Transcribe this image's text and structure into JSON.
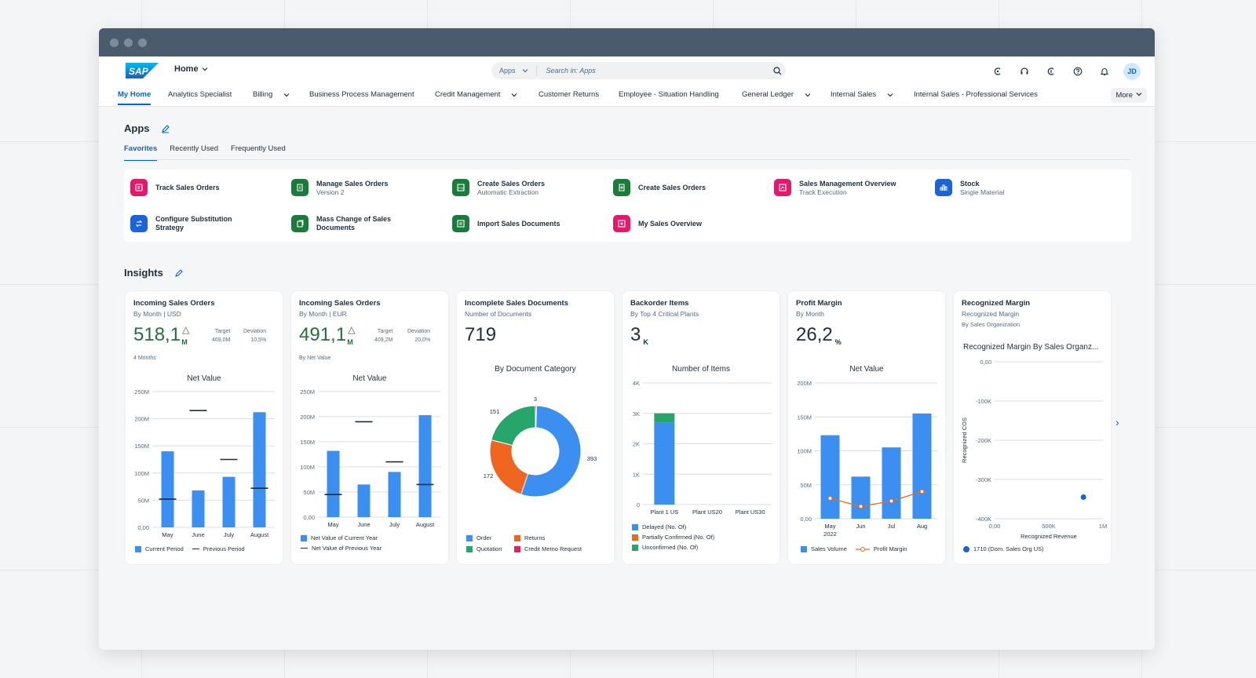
{
  "shell": {
    "home_label": "Home",
    "search_scope": "Apps",
    "search_placeholder": "Search in: Apps",
    "avatar_initials": "JD"
  },
  "nav": {
    "items": [
      "My Home",
      "Analytics Specialist",
      "Billing",
      "Business Process Management",
      "Credit Management",
      "Customer Returns",
      "Employee - Situation Handling",
      "General Ledger",
      "Internal Sales",
      "Internal Sales - Professional Services"
    ],
    "more_label": "More"
  },
  "apps": {
    "title": "Apps",
    "tabs": [
      "Favorites",
      "Recently Used",
      "Frequently Used"
    ],
    "items": [
      {
        "title": "Track Sales Orders",
        "subtitle": "",
        "color": "#e3196b"
      },
      {
        "title": "Manage Sales Orders",
        "subtitle": "Version 2",
        "color": "#1a7b3b"
      },
      {
        "title": "Create Sales Orders",
        "subtitle": "Automatic Extraction",
        "color": "#1a7b3b"
      },
      {
        "title": "Create Sales Orders",
        "subtitle": "",
        "color": "#1a7b3b"
      },
      {
        "title": "Sales Management Overview",
        "subtitle": "Track Execution",
        "color": "#e3196b"
      },
      {
        "title": "Stock",
        "subtitle": "Single Material",
        "color": "#1c63d8"
      },
      {
        "title": "Configure Substitution",
        "subtitle2": "Strategy",
        "color": "#1c63d8"
      },
      {
        "title": "Mass Change of Sales",
        "subtitle2": "Documents",
        "color": "#1a7b3b"
      },
      {
        "title": "Import Sales Documents",
        "subtitle": "",
        "color": "#1a7b3b"
      },
      {
        "title": "My Sales Overview",
        "subtitle": "",
        "color": "#e3196b"
      }
    ]
  },
  "insights": {
    "title": "Insights",
    "cards": [
      {
        "title": "Incoming Sales Orders",
        "subtitle": "By Month | USD",
        "kpi": "518,1",
        "unit": "M",
        "target_label": "Target",
        "target": "469,0M",
        "deviation_label": "Deviation",
        "deviation": "10,5%",
        "footer": "4 Months"
      },
      {
        "title": "Incoming Sales Orders",
        "subtitle": "By Month | EUR",
        "kpi": "491,1",
        "unit": "M",
        "target_label": "Target",
        "target": "409,2M",
        "deviation_label": "Deviation",
        "deviation": "20,0%",
        "footer": "By Net Value"
      },
      {
        "title": "Incomplete Sales Documents",
        "subtitle": "Number of Documents",
        "kpi": "719"
      },
      {
        "title": "Backorder Items",
        "subtitle": "By Top 4 Critical Plants",
        "kpi": "3",
        "unit": "K"
      },
      {
        "title": "Profit Margin",
        "subtitle": "By Month",
        "kpi": "26,2",
        "unit": "%"
      },
      {
        "title": "Recognized Margin",
        "subtitle": "Recognized Margin",
        "subtitle2": "By Sales Organization"
      }
    ]
  },
  "chart_data": [
    {
      "type": "bar",
      "title": "Net Value",
      "categories": [
        "May",
        "June",
        "July",
        "August"
      ],
      "y_ticks": [
        "0,00",
        "50M",
        "100M",
        "150M",
        "200M",
        "250M"
      ],
      "ylim": [
        0,
        250
      ],
      "series": [
        {
          "name": "Current Period",
          "values": [
            140,
            68,
            93,
            212
          ],
          "color": "#3b8ff0"
        },
        {
          "name": "Previous Period",
          "values": [
            52,
            215,
            125,
            72
          ],
          "color": "#1d2d3e"
        }
      ]
    },
    {
      "type": "bar",
      "title": "Net Value",
      "categories": [
        "May",
        "June",
        "July",
        "August"
      ],
      "y_ticks": [
        "0,00",
        "50M",
        "100M",
        "150M",
        "200M",
        "250M"
      ],
      "ylim": [
        0,
        250
      ],
      "series": [
        {
          "name": "Net Value of Current Year",
          "values": [
            132,
            65,
            90,
            203
          ],
          "color": "#3b8ff0"
        },
        {
          "name": "Net Value of Previous Year",
          "values": [
            45,
            190,
            110,
            65
          ],
          "color": "#1d2d3e"
        }
      ]
    },
    {
      "type": "pie",
      "title": "By Document Category",
      "slices": [
        {
          "name": "Order",
          "value": 393,
          "color": "#3b8ff0"
        },
        {
          "name": "Returns",
          "value": 172,
          "color": "#ef6621"
        },
        {
          "name": "Quotation",
          "value": 151,
          "color": "#26a66a"
        },
        {
          "name": "Credit Memo Request",
          "value": 3,
          "color": "#e5215f"
        }
      ],
      "labels": [
        "393",
        "172",
        "151",
        "3"
      ]
    },
    {
      "type": "bar",
      "title": "Number of Items",
      "categories": [
        "Plant 1 US",
        "Plant US20",
        "Plant US30"
      ],
      "y_ticks": [
        "0",
        "1K",
        "2K",
        "3K",
        "4K"
      ],
      "ylim": [
        0,
        4000
      ],
      "series": [
        {
          "name": "Delayed (No. Of)",
          "values": [
            2700,
            0,
            0
          ],
          "color": "#3b8ff0"
        },
        {
          "name": "Partially Confirmed (No. Of)",
          "values": [
            0,
            0,
            0
          ],
          "color": "#ef6621"
        },
        {
          "name": "Unconfirmed (No. Of)",
          "values": [
            300,
            0,
            0
          ],
          "color": "#26a66a"
        }
      ]
    },
    {
      "type": "bar",
      "title": "Net Value",
      "categories": [
        "May",
        "Jun",
        "Jul",
        "Aug"
      ],
      "x_sublabel": "2022",
      "y_ticks": [
        "0,00",
        "50M",
        "100M",
        "150M",
        "200M"
      ],
      "ylim": [
        0,
        200
      ],
      "series": [
        {
          "name": "Sales Volume",
          "values": [
            123,
            62,
            105,
            155
          ],
          "color": "#3b8ff0"
        },
        {
          "name": "Profit Margin",
          "values": [
            30,
            18,
            26,
            40
          ],
          "color": "#ef6621"
        }
      ]
    },
    {
      "type": "scatter",
      "title": "Recognized Margin By Sales Organz...",
      "xlabel": "Recognized Revenue",
      "ylabel": "Recognized COS",
      "x_ticks": [
        "0,00",
        "500K",
        "1M"
      ],
      "y_ticks": [
        "0,00",
        "-100K",
        "-200K",
        "-300K",
        "-400K"
      ],
      "xlim": [
        0,
        1000000
      ],
      "ylim": [
        -400000,
        0
      ],
      "series": [
        {
          "name": "1710 (Dom. Sales Org US)",
          "points": [
            [
              820000,
              -345000
            ]
          ],
          "color": "#1c63d8"
        }
      ]
    }
  ]
}
